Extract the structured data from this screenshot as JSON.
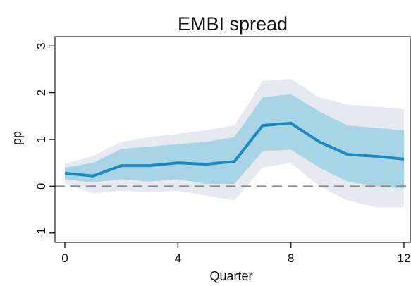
{
  "chart_data": {
    "type": "line",
    "title": "EMBI spread",
    "xlabel": "Quarter",
    "ylabel": "pp",
    "xlim": [
      0,
      12
    ],
    "ylim": [
      -1.2,
      3.2
    ],
    "x_ticks": [
      0,
      4,
      8,
      12
    ],
    "y_ticks": [
      -1,
      0,
      1,
      2,
      3
    ],
    "x_tick_labels": [
      "0",
      "4",
      "8",
      "12"
    ],
    "y_tick_labels": [
      "-1",
      "0",
      "1",
      "2",
      "3"
    ],
    "grid": false,
    "zero_line": true,
    "x": [
      0,
      1,
      2,
      3,
      4,
      5,
      6,
      7,
      8,
      9,
      10,
      11,
      12
    ],
    "series": [
      {
        "values": [
          0.28,
          0.22,
          0.44,
          0.44,
          0.5,
          0.47,
          0.53,
          1.3,
          1.35,
          0.95,
          0.68,
          0.64,
          0.58
        ],
        "color": "#1a8abf"
      }
    ],
    "bands": [
      {
        "level": "outer",
        "color": "#e6e9f0",
        "lower": [
          0.05,
          -0.15,
          -0.1,
          -0.12,
          -0.1,
          -0.2,
          -0.3,
          0.4,
          0.5,
          0.0,
          -0.3,
          -0.45,
          -0.45
        ],
        "upper": [
          0.48,
          0.65,
          0.95,
          1.05,
          1.12,
          1.2,
          1.3,
          2.25,
          2.3,
          1.9,
          1.75,
          1.7,
          1.65
        ]
      },
      {
        "level": "inner",
        "color": "#a8d4e6",
        "lower": [
          0.15,
          0.08,
          0.15,
          0.1,
          0.15,
          0.05,
          0.05,
          0.75,
          0.78,
          0.4,
          0.1,
          0.0,
          -0.05
        ],
        "upper": [
          0.4,
          0.5,
          0.8,
          0.85,
          0.9,
          0.95,
          1.05,
          1.9,
          1.97,
          1.6,
          1.3,
          1.25,
          1.2
        ]
      }
    ]
  }
}
